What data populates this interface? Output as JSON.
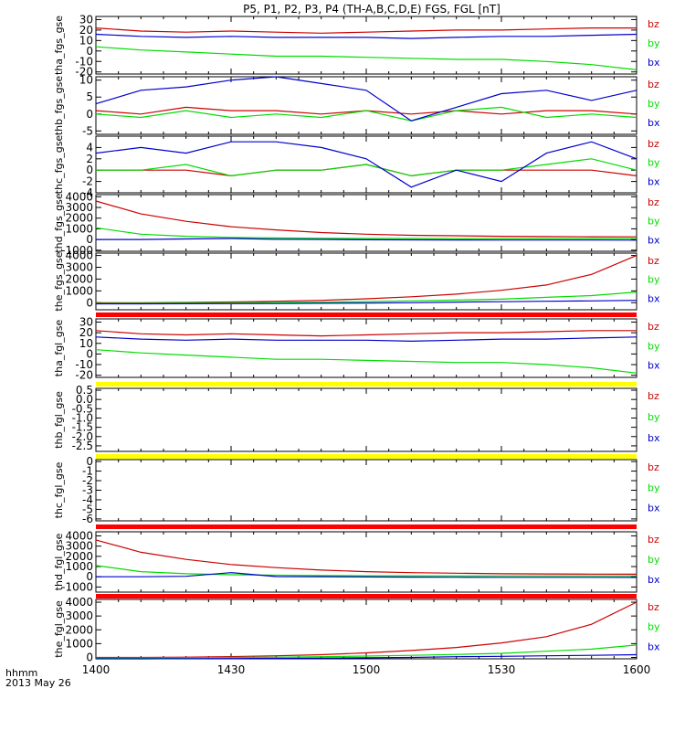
{
  "title": "P5, P1, P2, P3, P4 (TH-A,B,C,D,E) FGS, FGL [nT]",
  "footer": {
    "label": "hhmm",
    "date": "2013 May 26"
  },
  "x_ticks": [
    "1400",
    "1430",
    "1500",
    "1530",
    "1600"
  ],
  "legend": [
    "bz",
    "by",
    "bx"
  ],
  "colors": {
    "bz": "#cc0000",
    "by": "#00dd00",
    "bx": "#0000cc",
    "bar_red": "#ff0000",
    "bar_yellow": "#ffff00"
  },
  "chart_data": [
    {
      "type": "line",
      "ylabel": "tha_fgs_gse",
      "ylim": [
        -22,
        33
      ],
      "yticks": [
        "30",
        "20",
        "10",
        "0",
        "-10",
        "-20"
      ],
      "ytick_values": [
        30,
        20,
        10,
        0,
        -10,
        -20
      ],
      "x": [
        1400,
        1410,
        1420,
        1430,
        1440,
        1450,
        1500,
        1510,
        1520,
        1530,
        1540,
        1550,
        1600
      ],
      "series": [
        {
          "name": "bz",
          "values": [
            22,
            19,
            18,
            19,
            18,
            17,
            18,
            19,
            20,
            20,
            21,
            22,
            22
          ]
        },
        {
          "name": "by",
          "values": [
            4,
            1,
            -1,
            -3,
            -5,
            -5,
            -6,
            -7,
            -8,
            -8,
            -10,
            -13,
            -18
          ]
        },
        {
          "name": "bx",
          "values": [
            16,
            14,
            13,
            14,
            13,
            13,
            13,
            12,
            13,
            14,
            14,
            15,
            16
          ]
        }
      ]
    },
    {
      "type": "line",
      "ylabel": "thb_fgs_gse",
      "ylim": [
        -6,
        11
      ],
      "yticks": [
        "10",
        "5",
        "0",
        "-5"
      ],
      "ytick_values": [
        10,
        5,
        0,
        -5
      ],
      "x": [
        1400,
        1410,
        1420,
        1430,
        1440,
        1450,
        1500,
        1510,
        1520,
        1530,
        1540,
        1550,
        1600
      ],
      "series": [
        {
          "name": "bz",
          "values": [
            1,
            0,
            2,
            1,
            1,
            0,
            1,
            0,
            1,
            0,
            1,
            1,
            0
          ]
        },
        {
          "name": "by",
          "values": [
            0,
            -1,
            1,
            -1,
            0,
            -1,
            1,
            -2,
            1,
            2,
            -1,
            0,
            -1
          ]
        },
        {
          "name": "bx",
          "values": [
            3,
            7,
            8,
            10,
            11,
            9,
            7,
            -2,
            2,
            6,
            7,
            4,
            7
          ]
        }
      ]
    },
    {
      "type": "line",
      "ylabel": "thc_fgs_gse",
      "ylim": [
        -4,
        6
      ],
      "yticks": [
        "4",
        "2",
        "0",
        "-2",
        "-4"
      ],
      "ytick_values": [
        4,
        2,
        0,
        -2,
        -4
      ],
      "x": [
        1400,
        1410,
        1420,
        1430,
        1440,
        1450,
        1500,
        1510,
        1520,
        1530,
        1540,
        1550,
        1600
      ],
      "series": [
        {
          "name": "bz",
          "values": [
            0,
            0,
            0,
            -1,
            0,
            0,
            1,
            -1,
            0,
            0,
            0,
            0,
            -1
          ]
        },
        {
          "name": "by",
          "values": [
            0,
            0,
            1,
            -1,
            0,
            0,
            1,
            -1,
            0,
            0,
            1,
            2,
            0
          ]
        },
        {
          "name": "bx",
          "values": [
            3,
            4,
            3,
            5,
            5,
            4,
            2,
            -3,
            0,
            -2,
            3,
            5,
            2
          ]
        }
      ]
    },
    {
      "type": "line",
      "ylabel": "thd_fgs_gse",
      "ylim": [
        -1100,
        4200
      ],
      "yticks": [
        "4000",
        "3000",
        "2000",
        "1000",
        "0",
        "-1000"
      ],
      "ytick_values": [
        4000,
        3000,
        2000,
        1000,
        0,
        -1000
      ],
      "x": [
        1400,
        1410,
        1420,
        1430,
        1440,
        1450,
        1500,
        1510,
        1520,
        1530,
        1540,
        1550,
        1600
      ],
      "series": [
        {
          "name": "bz",
          "values": [
            3600,
            2400,
            1700,
            1200,
            900,
            650,
            500,
            400,
            350,
            300,
            280,
            260,
            250
          ]
        },
        {
          "name": "by",
          "values": [
            1100,
            500,
            300,
            200,
            150,
            120,
            100,
            100,
            90,
            90,
            90,
            90,
            90
          ]
        },
        {
          "name": "bx",
          "values": [
            0,
            0,
            50,
            100,
            20,
            10,
            -20,
            -30,
            -40,
            -50,
            -50,
            -50,
            -60
          ]
        }
      ]
    },
    {
      "type": "line",
      "ylabel": "the_fgs_gse",
      "ylim": [
        -600,
        4200
      ],
      "yticks": [
        "4000",
        "3000",
        "2000",
        "1000",
        "0"
      ],
      "ytick_values": [
        4000,
        3000,
        2000,
        1000,
        0
      ],
      "x": [
        1400,
        1410,
        1420,
        1430,
        1440,
        1450,
        1500,
        1510,
        1520,
        1530,
        1540,
        1550,
        1600
      ],
      "series": [
        {
          "name": "bz",
          "values": [
            0,
            0,
            20,
            60,
            120,
            200,
            330,
            500,
            720,
            1050,
            1500,
            2400,
            4000
          ]
        },
        {
          "name": "by",
          "values": [
            -60,
            -40,
            -20,
            0,
            20,
            50,
            100,
            150,
            220,
            300,
            450,
            600,
            900
          ]
        },
        {
          "name": "bx",
          "values": [
            -100,
            -100,
            -90,
            -80,
            -70,
            -50,
            -30,
            0,
            50,
            80,
            120,
            150,
            200
          ]
        }
      ]
    },
    {
      "type": "line",
      "ylabel": "tha_fgl_gse",
      "ylim": [
        -22,
        33
      ],
      "yticks": [
        "30",
        "20",
        "10",
        "0",
        "-10",
        "-20"
      ],
      "ytick_values": [
        30,
        20,
        10,
        0,
        -10,
        -20
      ],
      "x": [
        1400,
        1410,
        1420,
        1430,
        1440,
        1450,
        1500,
        1510,
        1520,
        1530,
        1540,
        1550,
        1600
      ],
      "series": [
        {
          "name": "bz",
          "values": [
            22,
            19,
            18,
            19,
            18,
            17,
            18,
            19,
            20,
            20,
            21,
            22,
            22
          ]
        },
        {
          "name": "by",
          "values": [
            4,
            1,
            -1,
            -3,
            -5,
            -5,
            -6,
            -7,
            -8,
            -8,
            -10,
            -13,
            -18
          ]
        },
        {
          "name": "bx",
          "values": [
            16,
            14,
            13,
            14,
            13,
            13,
            13,
            12,
            13,
            14,
            14,
            15,
            16
          ]
        }
      ]
    },
    {
      "type": "line",
      "ylabel": "thb_fgl_gse",
      "ylim": [
        -2.8,
        0.6
      ],
      "yticks": [
        "0.5",
        "0.0",
        "-0.5",
        "-1.0",
        "-1.5",
        "-2.0",
        "-2.5"
      ],
      "ytick_values": [
        0.5,
        0,
        -0.5,
        -1,
        -1.5,
        -2,
        -2.5
      ],
      "x": [],
      "series": []
    },
    {
      "type": "line",
      "ylabel": "thc_fgl_gse",
      "ylim": [
        -6.2,
        0.2
      ],
      "yticks": [
        "0",
        "-1",
        "-2",
        "-3",
        "-4",
        "-5",
        "-6"
      ],
      "ytick_values": [
        0,
        -1,
        -2,
        -3,
        -4,
        -5,
        -6
      ],
      "x": [],
      "series": []
    },
    {
      "type": "line",
      "ylabel": "thd_fgl_gse",
      "ylim": [
        -1500,
        4400
      ],
      "yticks": [
        "4000",
        "3000",
        "2000",
        "1000",
        "0",
        "-1000"
      ],
      "ytick_values": [
        4000,
        3000,
        2000,
        1000,
        0,
        -1000
      ],
      "x": [
        1400,
        1410,
        1420,
        1430,
        1440,
        1450,
        1500,
        1510,
        1520,
        1530,
        1540,
        1550,
        1600
      ],
      "series": [
        {
          "name": "bz",
          "values": [
            3600,
            2400,
            1700,
            1200,
            900,
            650,
            500,
            400,
            350,
            300,
            280,
            260,
            250
          ]
        },
        {
          "name": "by",
          "values": [
            1100,
            500,
            300,
            200,
            150,
            120,
            100,
            100,
            90,
            90,
            90,
            90,
            90
          ]
        },
        {
          "name": "bx",
          "values": [
            0,
            0,
            50,
            400,
            20,
            10,
            -20,
            -30,
            -40,
            -50,
            -50,
            -50,
            -60
          ]
        }
      ]
    },
    {
      "type": "line",
      "ylabel": "the_fgl_gse",
      "ylim": [
        -100,
        4200
      ],
      "yticks": [
        "4000",
        "3000",
        "2000",
        "1000",
        "0"
      ],
      "ytick_values": [
        4000,
        3000,
        2000,
        1000,
        0
      ],
      "x": [
        1400,
        1410,
        1420,
        1430,
        1440,
        1450,
        1500,
        1510,
        1520,
        1530,
        1540,
        1550,
        1600
      ],
      "series": [
        {
          "name": "bz",
          "values": [
            0,
            0,
            20,
            60,
            120,
            200,
            330,
            500,
            720,
            1050,
            1500,
            2400,
            4000
          ]
        },
        {
          "name": "by",
          "values": [
            -60,
            -40,
            -20,
            0,
            20,
            50,
            100,
            150,
            220,
            300,
            450,
            600,
            900
          ]
        },
        {
          "name": "bx",
          "values": [
            -100,
            -100,
            -90,
            -80,
            -70,
            -50,
            -30,
            0,
            50,
            80,
            120,
            150,
            200
          ]
        }
      ]
    }
  ]
}
